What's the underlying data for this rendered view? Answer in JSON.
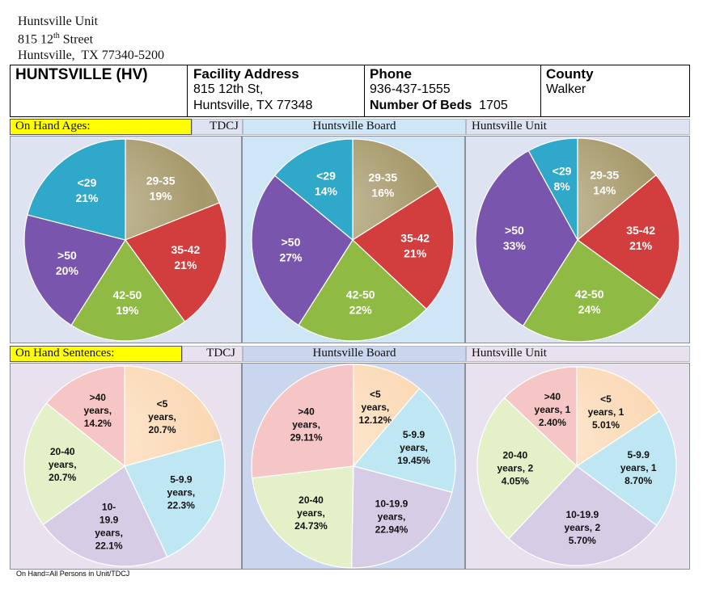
{
  "unit_address": {
    "name": "Huntsville Unit",
    "street_num": "815 12",
    "street_sup": "th",
    "street_rest": " Street",
    "city_line": "Huntsville,  TX 77340-5200"
  },
  "info": {
    "unit_name": "HUNTSVILLE (HV)",
    "facility_address_label": "Facility Address",
    "facility_address_line1": "815 12th St,",
    "facility_address_line2": "Huntsville, TX 77348",
    "phone_label": "Phone",
    "phone_value": "936-437-1555",
    "beds_label": "Number Of Beds",
    "beds_value": "1705",
    "county_label": "County",
    "county_value": "Walker"
  },
  "ages_header": {
    "title": "On Hand Ages:",
    "col1": "TDCJ",
    "col2": "Huntsville Board",
    "col3": "Huntsville Unit"
  },
  "sentences_header": {
    "title": "On Hand Sentences:",
    "col1": "TDCJ",
    "col2": "Huntsville Board",
    "col3": "Huntsville Unit"
  },
  "footer_note": "On Hand=All Persons in Unit/TDCJ",
  "colors": {
    "ages_bg_1": "#dde3f0",
    "ages_bg_2": "#cfe6f7",
    "ages_bg_3": "#dde3f0",
    "sent_bg_1": "#e9e2ee",
    "sent_bg_2": "#c9d6ee",
    "sent_bg_3": "#e9e2ee"
  },
  "chart_data": [
    {
      "type": "pie",
      "title": "",
      "slices": [
        {
          "label": "29-35",
          "value": 19,
          "display": [
            "29-35",
            "19%"
          ],
          "color": "#a59869"
        },
        {
          "label": "35-42",
          "value": 21,
          "display": [
            "35-42",
            "21%"
          ],
          "color": "#d23d3d"
        },
        {
          "label": "42-50",
          "value": 19,
          "display": [
            "42-50",
            "19%"
          ],
          "color": "#8fbb45"
        },
        {
          "label": ">50",
          "value": 20,
          "display": [
            ">50",
            "20%"
          ],
          "color": "#7a55ad"
        },
        {
          "label": "<29",
          "value": 21,
          "display": [
            "<29",
            "21%"
          ],
          "color": "#2fa8c9"
        }
      ]
    },
    {
      "type": "pie",
      "title": "",
      "slices": [
        {
          "label": "29-35",
          "value": 16,
          "display": [
            "29-35",
            "16%"
          ],
          "color": "#a59869"
        },
        {
          "label": "35-42",
          "value": 21,
          "display": [
            "35-42",
            "21%"
          ],
          "color": "#d23d3d"
        },
        {
          "label": "42-50",
          "value": 22,
          "display": [
            "42-50",
            "22%"
          ],
          "color": "#8fbb45"
        },
        {
          "label": ">50",
          "value": 27,
          "display": [
            ">50",
            "27%"
          ],
          "color": "#7a55ad"
        },
        {
          "label": "<29",
          "value": 14,
          "display": [
            "<29",
            "14%"
          ],
          "color": "#2fa8c9"
        }
      ]
    },
    {
      "type": "pie",
      "title": "",
      "slices": [
        {
          "label": "29-35",
          "value": 14,
          "display": [
            "29-35",
            "14%"
          ],
          "color": "#a59869"
        },
        {
          "label": "35-42",
          "value": 21,
          "display": [
            "35-42",
            "21%"
          ],
          "color": "#d23d3d"
        },
        {
          "label": "42-50",
          "value": 24,
          "display": [
            "42-50",
            "24%"
          ],
          "color": "#8fbb45"
        },
        {
          "label": ">50",
          "value": 33,
          "display": [
            ">50",
            "33%"
          ],
          "color": "#7a55ad"
        },
        {
          "label": "<29",
          "value": 8,
          "display": [
            "<29",
            "8%"
          ],
          "color": "#2fa8c9"
        }
      ]
    },
    {
      "type": "pie",
      "title": "",
      "slices": [
        {
          "label": "<5",
          "value": 20.7,
          "display": [
            "<5",
            "years,",
            "20.7%"
          ],
          "color": "#fbd9b5"
        },
        {
          "label": "5-9.9",
          "value": 22.3,
          "display": [
            "5-9.9",
            "years,",
            "22.3%"
          ],
          "color": "#bfe6f3"
        },
        {
          "label": "10-19.9",
          "value": 22.1,
          "display": [
            "10-",
            "19.9",
            "years,",
            "22.1%"
          ],
          "color": "#d6cce6"
        },
        {
          "label": "20-40",
          "value": 20.7,
          "display": [
            "20-40",
            "years,",
            "20.7%"
          ],
          "color": "#e4f0c8"
        },
        {
          "label": ">40",
          "value": 14.2,
          "display": [
            ">40",
            "years,",
            "14.2%"
          ],
          "color": "#f6c6c6"
        }
      ]
    },
    {
      "type": "pie",
      "title": "",
      "slices": [
        {
          "label": "<5",
          "value": 12.12,
          "display": [
            "<5",
            "years,",
            "12.12%"
          ],
          "color": "#fbd9b5"
        },
        {
          "label": "5-9.9",
          "value": 19.45,
          "display": [
            "5-9.9",
            "years,",
            "19.45%"
          ],
          "color": "#bfe6f3"
        },
        {
          "label": "10-19.9",
          "value": 22.94,
          "display": [
            "10-19.9",
            "years,",
            "22.94%"
          ],
          "color": "#d6cce6"
        },
        {
          "label": "20-40",
          "value": 24.73,
          "display": [
            "20-40",
            "years,",
            "24.73%"
          ],
          "color": "#e4f0c8"
        },
        {
          "label": ">40",
          "value": 29.11,
          "display": [
            ">40",
            "years,",
            "29.11%"
          ],
          "color": "#f6c6c6"
        }
      ]
    },
    {
      "type": "pie",
      "title": "",
      "slices": [
        {
          "label": "<5",
          "value": 15.01,
          "display": [
            "<5",
            "years, 1",
            "5.01%"
          ],
          "color": "#fbd9b5"
        },
        {
          "label": "5-9.9",
          "value": 18.7,
          "display": [
            "5-9.9",
            "years, 1",
            "8.70%"
          ],
          "color": "#bfe6f3"
        },
        {
          "label": "10-19.9",
          "value": 25.7,
          "display": [
            "10-19.9",
            "years, 2",
            "5.70%"
          ],
          "color": "#d6cce6"
        },
        {
          "label": "20-40",
          "value": 24.05,
          "display": [
            "20-40",
            "years, 2",
            "4.05%"
          ],
          "color": "#e4f0c8"
        },
        {
          "label": ">40",
          "value": 12.4,
          "display": [
            ">40",
            "years, 1",
            "2.40%"
          ],
          "color": "#f6c6c6"
        }
      ]
    }
  ]
}
